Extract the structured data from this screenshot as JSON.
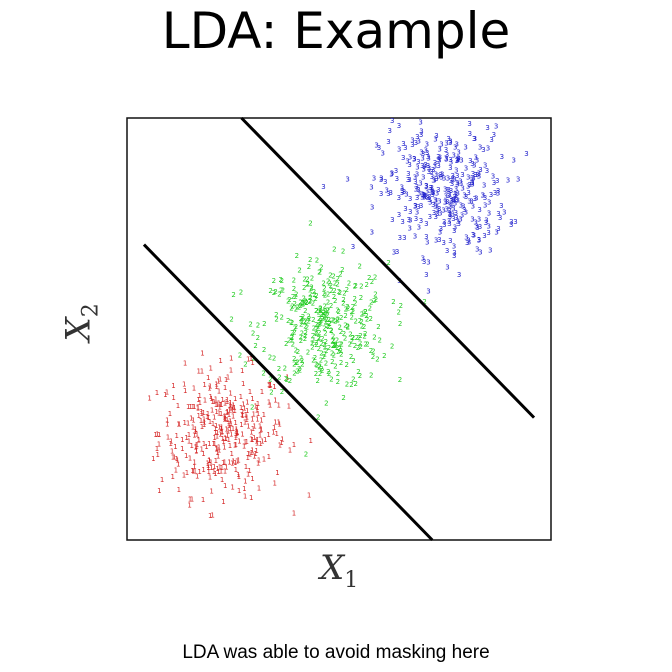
{
  "slide": {
    "title": "LDA: Example",
    "caption": "LDA was able to avoid masking here"
  },
  "chart_data": {
    "type": "scatter",
    "title": "",
    "xlabel": "X",
    "xlabel_sub": "1",
    "ylabel": "X",
    "ylabel_sub": "2",
    "xlim": [
      0,
      10
    ],
    "ylim": [
      0,
      10
    ],
    "grid": false,
    "series": [
      {
        "label": "1",
        "color": "#d62828",
        "center": [
          2.2,
          2.5
        ],
        "spread": [
          0.75,
          0.75
        ],
        "count": 360
      },
      {
        "label": "2",
        "color": "#22cc22",
        "center": [
          4.6,
          5.0
        ],
        "spread": [
          0.75,
          0.75
        ],
        "count": 360
      },
      {
        "label": "3",
        "color": "#2222cc",
        "center": [
          7.4,
          8.2
        ],
        "spread": [
          0.75,
          0.75
        ],
        "count": 360
      }
    ],
    "boundaries": [
      {
        "from": [
          0.4,
          7.0
        ],
        "to": [
          7.2,
          0.0
        ]
      },
      {
        "from": [
          2.7,
          10.0
        ],
        "to": [
          9.6,
          2.9
        ]
      }
    ]
  }
}
